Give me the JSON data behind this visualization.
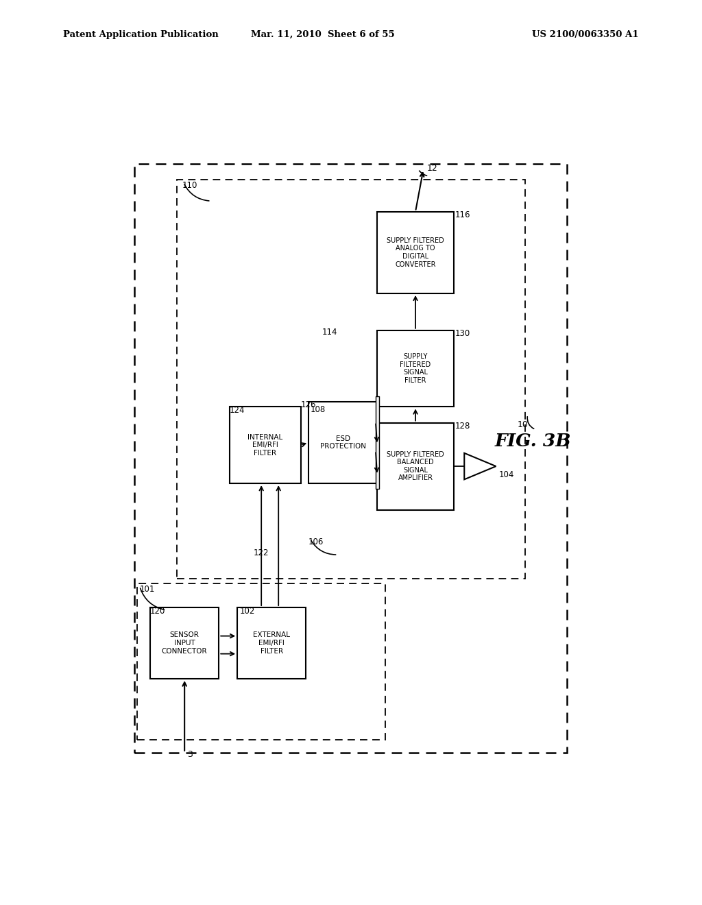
{
  "header_left": "Patent Application Publication",
  "header_mid": "Mar. 11, 2010  Sheet 6 of 55",
  "header_right": "US 2100/0063350 A1",
  "fig_label": "FIG. 3B",
  "background_color": "#ffffff"
}
